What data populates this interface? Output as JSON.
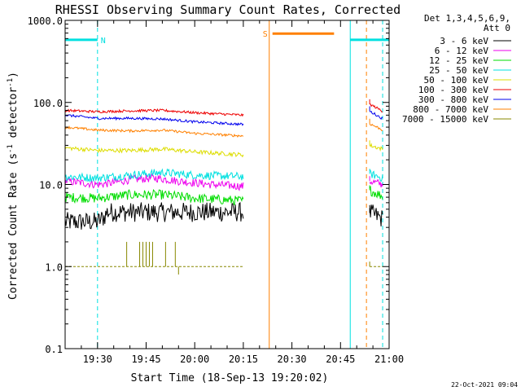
{
  "chart_data": {
    "type": "line",
    "title": "RHESSI Observing Summary Count Rates, Corrected",
    "xlabel": "Start Time (18-Sep-13 19:20:02)",
    "ylabel_prefix": "Corrected Count Rate (s",
    "ylabel_sup1": "-1",
    "ylabel_mid": " detector",
    "ylabel_sup2": "-1",
    "ylabel_suffix": ")",
    "y_scale": "log",
    "ylim": [
      0.1,
      1000
    ],
    "xlim_minutes": [
      0,
      100
    ],
    "x_ticks": [
      {
        "minute": 10,
        "label": "19:30"
      },
      {
        "minute": 25,
        "label": "19:45"
      },
      {
        "minute": 40,
        "label": "20:00"
      },
      {
        "minute": 55,
        "label": "20:15"
      },
      {
        "minute": 70,
        "label": "20:30"
      },
      {
        "minute": 85,
        "label": "20:45"
      },
      {
        "minute": 100,
        "label": "21:00"
      }
    ],
    "y_ticks": [
      {
        "value": 0.1,
        "label": "0.1"
      },
      {
        "value": 1,
        "label": "1.0"
      },
      {
        "value": 10,
        "label": "10.0"
      },
      {
        "value": 100,
        "label": "100.0"
      },
      {
        "value": 1000,
        "label": "1000.0"
      }
    ],
    "legend": {
      "header1": "Det 1,3,4,5,6,9,",
      "header2": "Att 0",
      "placement": "right"
    },
    "series": [
      {
        "name": "3 - 6 keV",
        "color": "#000000",
        "seg1": [
          [
            0,
            3.5
          ],
          [
            10,
            3.5
          ],
          [
            12,
            4
          ],
          [
            13,
            4.6
          ],
          [
            20,
            4.6
          ],
          [
            30,
            4.6
          ],
          [
            40,
            4.6
          ],
          [
            55,
            4.6
          ]
        ],
        "seg2": [
          [
            94,
            4.5
          ],
          [
            98,
            3.8
          ]
        ],
        "noise": 0.12
      },
      {
        "name": "6 - 12 keV",
        "color": "#ee00ee",
        "seg1": [
          [
            0,
            11
          ],
          [
            10,
            10
          ],
          [
            15,
            10.5
          ],
          [
            20,
            11.5
          ],
          [
            28,
            12
          ],
          [
            35,
            11
          ],
          [
            45,
            10
          ],
          [
            55,
            9.5
          ]
        ],
        "seg2": [
          [
            94,
            11
          ],
          [
            98,
            10
          ]
        ],
        "noise": 0.05
      },
      {
        "name": "12 - 25 keV",
        "color": "#00dd00",
        "seg1": [
          [
            0,
            7
          ],
          [
            10,
            6.8
          ],
          [
            20,
            7.5
          ],
          [
            30,
            7.5
          ],
          [
            40,
            6.8
          ],
          [
            55,
            6.3
          ]
        ],
        "seg2": [
          [
            94,
            8.5
          ],
          [
            98,
            7.2
          ]
        ],
        "noise": 0.06
      },
      {
        "name": "25 - 50 keV",
        "color": "#00e0e0",
        "seg1": [
          [
            0,
            12.5
          ],
          [
            10,
            12
          ],
          [
            20,
            13
          ],
          [
            30,
            14
          ],
          [
            40,
            13
          ],
          [
            55,
            12.5
          ]
        ],
        "seg2": [
          [
            94,
            13.5
          ],
          [
            98,
            12
          ]
        ],
        "noise": 0.05
      },
      {
        "name": "50 - 100 keV",
        "color": "#dddd00",
        "seg1": [
          [
            0,
            28
          ],
          [
            10,
            26
          ],
          [
            20,
            26
          ],
          [
            30,
            27
          ],
          [
            40,
            25
          ],
          [
            55,
            23
          ]
        ],
        "seg2": [
          [
            94,
            30
          ],
          [
            98,
            27
          ]
        ],
        "noise": 0.025
      },
      {
        "name": "100 - 300 keV",
        "color": "#ee0000",
        "seg1": [
          [
            0,
            80
          ],
          [
            10,
            77
          ],
          [
            20,
            79
          ],
          [
            30,
            80
          ],
          [
            40,
            75
          ],
          [
            55,
            70
          ]
        ],
        "seg2": [
          [
            94,
            95
          ],
          [
            98,
            78
          ]
        ],
        "noise": 0.015
      },
      {
        "name": "300 - 800 keV",
        "color": "#0000ee",
        "seg1": [
          [
            0,
            70
          ],
          [
            10,
            64
          ],
          [
            20,
            64
          ],
          [
            30,
            63
          ],
          [
            40,
            58
          ],
          [
            55,
            54
          ]
        ],
        "seg2": [
          [
            94,
            78
          ],
          [
            98,
            63
          ]
        ],
        "noise": 0.015
      },
      {
        "name": "800 - 7000 keV",
        "color": "#ff8000",
        "seg1": [
          [
            0,
            50
          ],
          [
            10,
            46
          ],
          [
            20,
            45
          ],
          [
            30,
            46
          ],
          [
            40,
            42
          ],
          [
            55,
            39
          ]
        ],
        "seg2": [
          [
            94,
            55
          ],
          [
            98,
            46
          ]
        ],
        "noise": 0.015
      },
      {
        "name": "7000 - 15000 keV",
        "color": "#888800",
        "seg1": [
          [
            0,
            1
          ],
          [
            55,
            1
          ]
        ],
        "seg2": [
          [
            94,
            1
          ],
          [
            98,
            1
          ]
        ],
        "noise": 0
      }
    ],
    "segment_gaps_minutes": [
      [
        55,
        94
      ]
    ],
    "lower_series_start_minute": 10,
    "spikes_7000": [
      [
        19,
        2
      ],
      [
        23,
        2
      ],
      [
        24,
        2
      ],
      [
        25,
        2
      ],
      [
        26,
        2
      ],
      [
        27,
        2
      ],
      [
        31,
        2
      ],
      [
        34,
        2
      ],
      [
        35,
        0.8
      ]
    ],
    "state_bars": [
      {
        "label": "N",
        "color": "#00e0e0",
        "y_value": 580,
        "spans": [
          [
            0,
            10
          ],
          [
            88,
            100
          ]
        ],
        "label_minute": 11,
        "label_color": "#00e0e0"
      },
      {
        "label": "S",
        "color": "#ff8000",
        "y_value": 690,
        "spans": [
          [
            64,
            83
          ]
        ],
        "label_minute": 61,
        "label_color": "#ff8000"
      }
    ],
    "vlines": [
      {
        "minute": 0,
        "color": "#00e0e0",
        "style": "solid"
      },
      {
        "minute": 10,
        "color": "#00e0e0",
        "style": "dashed"
      },
      {
        "minute": 63,
        "color": "#ff8000",
        "style": "solid"
      },
      {
        "minute": 88,
        "color": "#00e0e0",
        "style": "solid"
      },
      {
        "minute": 93,
        "color": "#ff8000",
        "style": "dashed"
      },
      {
        "minute": 98,
        "color": "#00e0e0",
        "style": "dashed"
      }
    ],
    "footer_date": "22-Oct-2021 09:04"
  }
}
